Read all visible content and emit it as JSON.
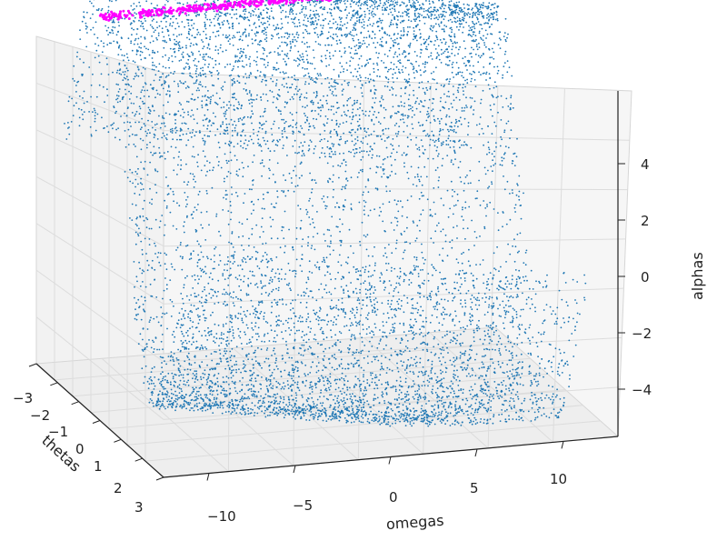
{
  "chart_data": {
    "type": "scatter",
    "projection": "3d",
    "xlabel": "thetas",
    "ylabel": "omegas",
    "zlabel": "alphas",
    "x_ticks": [
      "−3",
      "−2",
      "−1",
      "0",
      "1",
      "2",
      "3"
    ],
    "y_ticks": [
      "−10",
      "−5",
      "0",
      "5",
      "10"
    ],
    "z_ticks": [
      "4",
      "2",
      "0",
      "−2",
      "−4"
    ],
    "xlim": [
      -3.14,
      3.14
    ],
    "ylim": [
      -13,
      13
    ],
    "zlim": [
      -5.5,
      5.5
    ],
    "grid": true,
    "series": [
      {
        "color": "#1f77b4",
        "marker_size": 1,
        "points_description_values": {
          "theta_range": [
            -3.14,
            3.14
          ],
          "omega_range": [
            -13,
            12
          ],
          "alpha_formula_range": [
            -5.2,
            5.2
          ]
        }
      },
      {
        "color": "#ff00ff",
        "marker_size": 2,
        "points_description_values": {
          "alpha_value": 5.2,
          "omega_range": [
            -12,
            8
          ]
        }
      }
    ]
  }
}
